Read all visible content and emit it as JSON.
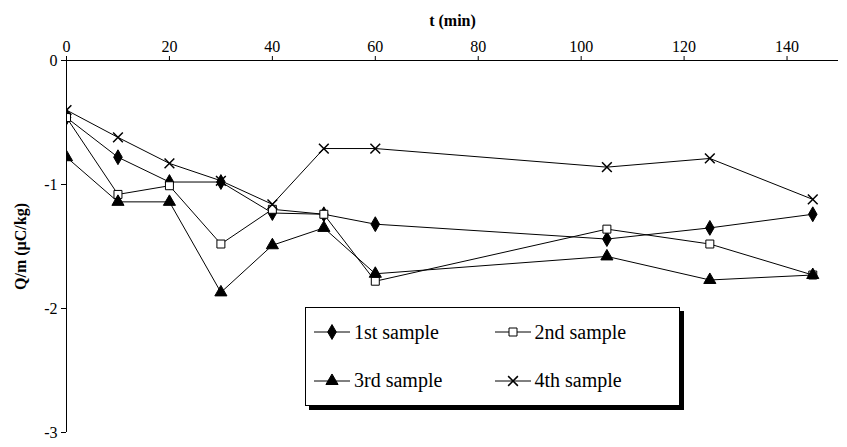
{
  "chart_data": {
    "type": "line",
    "x_label": "t (min)",
    "y_label": "Q/m (µC/kg)",
    "x": [
      0,
      10,
      20,
      30,
      40,
      50,
      60,
      105,
      125,
      145
    ],
    "xlim": [
      0,
      150
    ],
    "xticks": [
      0,
      20,
      40,
      60,
      80,
      100,
      120,
      140
    ],
    "ylim": [
      -3,
      0
    ],
    "yticks": [
      0,
      -1,
      -2,
      -3
    ],
    "grid": false,
    "legend": "bottom",
    "series": [
      {
        "name": "1st sample",
        "color": "#000000",
        "marker": "diamond",
        "line_style": "solid",
        "values": [
          -0.46,
          -0.78,
          -0.98,
          -0.98,
          -1.23,
          -1.24,
          -1.32,
          -1.44,
          -1.35,
          -1.24
        ]
      },
      {
        "name": "2nd sample",
        "color": "#000000",
        "marker": "open-square",
        "line_style": "solid",
        "values": [
          -0.46,
          -1.08,
          -1.01,
          -1.48,
          -1.2,
          -1.24,
          -1.78,
          -1.36,
          -1.48,
          -1.73
        ]
      },
      {
        "name": "3rd sample",
        "color": "#000000",
        "marker": "triangle",
        "line_style": "solid",
        "values": [
          -0.78,
          -1.14,
          -1.14,
          -1.87,
          -1.49,
          -1.35,
          -1.72,
          -1.58,
          -1.77,
          -1.73
        ]
      },
      {
        "name": "4th sample",
        "color": "#000000",
        "marker": "x",
        "line_style": "solid",
        "values": [
          -0.4,
          -0.62,
          -0.83,
          -0.97,
          -1.16,
          -0.71,
          -0.71,
          -0.86,
          -0.79,
          -1.12
        ]
      }
    ]
  }
}
